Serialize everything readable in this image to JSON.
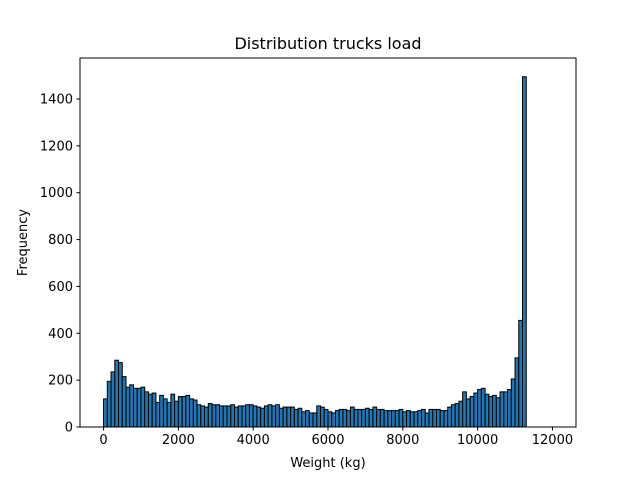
{
  "chart_data": {
    "type": "bar",
    "title": "Distribution trucks load",
    "xlabel": "Weight (kg)",
    "ylabel": "Frequency",
    "xlim": [
      -630,
      12630
    ],
    "ylim": [
      0,
      1575
    ],
    "xticks": [
      0,
      2000,
      4000,
      6000,
      8000,
      10000,
      12000
    ],
    "xtick_labels": [
      "0",
      "2000",
      "4000",
      "6000",
      "8000",
      "10000",
      "12000"
    ],
    "yticks": [
      0,
      200,
      400,
      600,
      800,
      1000,
      1200,
      1400
    ],
    "ytick_labels": [
      "0",
      "200",
      "400",
      "600",
      "800",
      "1000",
      "1200",
      "1400"
    ],
    "bin_start": 0,
    "bin_width": 100,
    "bar_color": "#1f77b4",
    "edge_color": "#000000",
    "grid": false,
    "values": [
      120,
      195,
      235,
      285,
      275,
      215,
      170,
      180,
      165,
      165,
      170,
      150,
      140,
      145,
      105,
      135,
      120,
      105,
      140,
      110,
      130,
      130,
      135,
      120,
      115,
      95,
      90,
      85,
      100,
      95,
      95,
      90,
      90,
      90,
      95,
      85,
      90,
      90,
      95,
      95,
      90,
      85,
      80,
      90,
      95,
      90,
      95,
      80,
      85,
      85,
      85,
      75,
      80,
      65,
      70,
      60,
      60,
      90,
      85,
      75,
      65,
      60,
      70,
      75,
      75,
      70,
      85,
      75,
      75,
      75,
      80,
      75,
      85,
      75,
      75,
      70,
      70,
      70,
      70,
      75,
      65,
      70,
      65,
      65,
      70,
      75,
      60,
      75,
      75,
      75,
      70,
      70,
      85,
      95,
      100,
      110,
      150,
      120,
      130,
      145,
      160,
      165,
      140,
      130,
      135,
      125,
      150,
      150,
      160,
      205,
      295,
      455,
      1495
    ]
  }
}
